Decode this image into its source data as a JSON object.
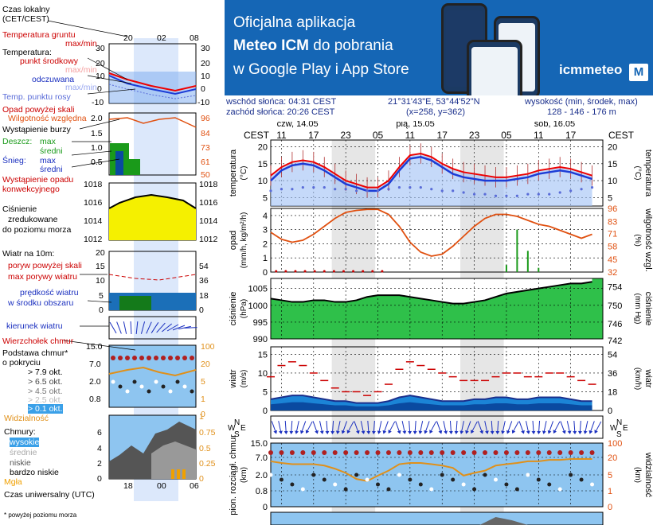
{
  "banner": {
    "line1": "Oficjalna aplikacja",
    "line2_bold": "Meteo ICM",
    "line2_rest": " do pobrania",
    "line3": "w Google Play i App Store",
    "logo": "icmmeteo",
    "logo_mark": "M"
  },
  "info": {
    "sunrise": "wschód słońca: 04:31 CEST",
    "sunset": "zachód słońca: 20:26 CEST",
    "coords": "21°31'43\"E, 53°44'52\"N",
    "grid": "(x=258, y=362)",
    "elev_label": "wysokość (min, środek, max)",
    "elev_values": "128 - 146 - 176 m"
  },
  "timeaxis": {
    "tz": "CEST",
    "days": [
      {
        "label": "czw, 14.05",
        "hour": 14
      },
      {
        "label": "pią, 15.05",
        "hour": 36
      },
      {
        "label": "sob, 16.05",
        "hour": 62
      }
    ],
    "hour_ticks": [
      {
        "label": "11",
        "h": 11
      },
      {
        "label": "17",
        "h": 17
      },
      {
        "label": "23",
        "h": 23
      },
      {
        "label": "05",
        "h": 29
      },
      {
        "label": "11",
        "h": 35
      },
      {
        "label": "17",
        "h": 41
      },
      {
        "label": "23",
        "h": 47
      },
      {
        "label": "05",
        "h": 53
      },
      {
        "label": "11",
        "h": 59
      },
      {
        "label": "17",
        "h": 65
      }
    ],
    "nights": [
      [
        20.4,
        28.5
      ],
      [
        44.4,
        52.5
      ]
    ]
  },
  "legend": {
    "time_local": "Czas lokalny",
    "time_local2": "(CET/CEST)",
    "hours_top": [
      "20",
      "02",
      "08"
    ],
    "soil_temp": "Temperatura gruntu",
    "maxmin": "max/min",
    "temperature": "Temperatura:",
    "mid_point": "punkt środkowy",
    "maxmin2": "max/min",
    "feels": "odczuwana",
    "maxmin3": "max/min",
    "dew": "Temp. punktu rosy",
    "temp_ticks": [
      "30",
      "20",
      "10",
      "0",
      "-10"
    ],
    "precip_above": "Opad powyżej skali",
    "humidity": "Wilgotność względna",
    "storm": "Wystąpienie burzy",
    "rain": "Deszcz:",
    "max": "max",
    "avg": "średni",
    "snow": "Śnieg:",
    "max2": "max",
    "avg2": "średni",
    "convective": "Wystąpienie opadu",
    "convective2": "konwekcyjnego",
    "rain_ticks": [
      "2.0",
      "1.5",
      "1.0",
      "0.5"
    ],
    "hum_ticks": [
      "96",
      "84",
      "73",
      "61",
      "50"
    ],
    "pressure": "Ciśnienie",
    "pressure2": "zredukowane",
    "pressure3": "do poziomu morza",
    "pres_ticks": [
      "1018",
      "1016",
      "1014",
      "1012"
    ],
    "wind_10m": "Wiatr na 10m:",
    "gust_above": "poryw powyżej skali",
    "max_gust": "max porywy wiatru",
    "wind_speed": "prędkość wiatru",
    "wind_speed2": "w środku obszaru",
    "wind_ticks": [
      "20",
      "15",
      "10",
      "5",
      "0"
    ],
    "wind_kmh_ticks": [
      "72",
      "54",
      "36",
      "18",
      "0"
    ],
    "wind_dir": "kierunek wiatru",
    "cloud_top": "Wierzchołek chmur",
    "cloud_base": "Podstawa chmur*",
    "cover": "o pokryciu",
    "okt79": "> 7.9 okt.",
    "okt65": "> 6.5 okt.",
    "okt45": "> 4.5 okt.",
    "okt25": "> 2.5 okt.",
    "okt01": "> 0.1 okt.",
    "cb_ticks": [
      "15.0",
      "7.0",
      "2.0",
      "0.8"
    ],
    "vis_ticks": [
      "100",
      "20",
      "5",
      "1",
      "0"
    ],
    "visibility": "Widzialność",
    "clouds": "Chmury:",
    "high": "wysokie",
    "mid": "średnie",
    "low": "niskie",
    "very_low": "bardzo niskie",
    "fog": "Mgła",
    "cl_ticks": [
      "6",
      "4",
      "2",
      "0"
    ],
    "cl_ticks_r": [
      "1",
      "0.75",
      "0.5",
      "0.25",
      "0"
    ],
    "hours_bottom": [
      "18",
      "00",
      "06"
    ],
    "utc": "Czas uniwersalny (UTC)",
    "footnote": "* powyżej poziomu morza"
  },
  "panels": {
    "temp": {
      "left": "temperatura",
      "left2": "(°C)",
      "right": "temperatura",
      "right2": "(°C)",
      "ticks": [
        "20",
        "15",
        "10",
        "5"
      ]
    },
    "precip": {
      "left": "opad",
      "left2": "(mm/h, kg/m²/h)",
      "right": "wilgotność wzgl.",
      "right2": "(%)",
      "ticks": [
        "4",
        "3",
        "2",
        "1",
        "0"
      ],
      "rticks": [
        "96",
        "83",
        "71",
        "58",
        "45",
        "32"
      ]
    },
    "pressure": {
      "left": "ciśnienie",
      "left2": "(hPa)",
      "right": "ciśnienie",
      "right2": "(mm Hg)",
      "ticks": [
        "1005",
        "1000",
        "995",
        "990"
      ],
      "rticks": [
        "754",
        "750",
        "746",
        "742"
      ]
    },
    "wind": {
      "left": "wiatr",
      "left2": "(m/s)",
      "right": "wiatr",
      "right2": "(km/h)",
      "ticks": [
        "15",
        "10",
        "5",
        "0"
      ],
      "rticks": [
        "54",
        "36",
        "18",
        "0"
      ]
    },
    "winddir": {
      "compass": "NWSE"
    },
    "clouds": {
      "left": "pion. rozciągł. chmur",
      "left2": "(km)",
      "right": "widzialność",
      "right2": "(km)",
      "ticks": [
        "15.0",
        "7.0",
        "2.0",
        "0.8",
        "0"
      ],
      "rticks": [
        "100",
        "20",
        "5",
        "1",
        "0"
      ]
    }
  },
  "chart_data": {
    "type": "line",
    "x_unit": "hour (CEST) from 00:00 14.05",
    "x": [
      9,
      11,
      13,
      15,
      17,
      19,
      21,
      23,
      25,
      27,
      29,
      31,
      33,
      35,
      37,
      39,
      41,
      43,
      45,
      47,
      49,
      51,
      53,
      55,
      57,
      59,
      61,
      63,
      65,
      67,
      69
    ],
    "series": [
      {
        "name": "temperatura",
        "values": [
          11.5,
          14,
          15.5,
          16,
          15.5,
          14,
          12,
          10,
          9,
          8,
          8,
          10,
          14,
          17.5,
          18,
          17,
          15,
          13.5,
          12.5,
          12,
          11.5,
          11,
          11,
          11.5,
          12,
          13,
          13.5,
          14,
          13.5,
          12.5,
          11.5
        ]
      },
      {
        "name": "temperatura odczuwana",
        "values": [
          10,
          13,
          14.5,
          15,
          14.5,
          13,
          11,
          9,
          8,
          7,
          7,
          9,
          13,
          16.5,
          17,
          16,
          14,
          12,
          11,
          10.5,
          10,
          10,
          10,
          10.5,
          11,
          12,
          12.5,
          13,
          12.5,
          11.5,
          10.5
        ]
      },
      {
        "name": "temperatura punktu rosy",
        "values": [
          7,
          7.5,
          7.5,
          8,
          8,
          8,
          7.5,
          7.5,
          7,
          7,
          7,
          7.5,
          8,
          8,
          8,
          7.5,
          7,
          7,
          6.5,
          6,
          6,
          5.5,
          5.5,
          5.5,
          6,
          6,
          6,
          6.5,
          7,
          7.5,
          8
        ]
      },
      {
        "name": "wilgotność względna",
        "values": [
          72,
          65,
          62,
          64,
          70,
          78,
          86,
          92,
          94,
          95,
          95,
          90,
          78,
          62,
          52,
          48,
          50,
          58,
          68,
          78,
          86,
          90,
          90,
          88,
          84,
          80,
          78,
          74,
          70,
          66,
          70
        ]
      },
      {
        "name": "opad",
        "values": [
          0,
          0,
          0,
          0,
          0,
          0,
          0,
          0,
          0,
          0,
          0,
          0,
          0,
          0,
          0,
          0,
          0,
          0,
          0,
          0,
          0,
          0,
          0.5,
          3,
          1.5,
          0.3,
          0,
          0,
          0,
          0,
          0
        ]
      },
      {
        "name": "ciśnienie",
        "values": [
          1002,
          1001.5,
          1001,
          1001,
          1001.5,
          1001.5,
          1001,
          1001,
          1001.5,
          1002.5,
          1003,
          1003,
          1003,
          1002.5,
          1002,
          1001.5,
          1001,
          1000.5,
          1000.5,
          1001,
          1001.5,
          1002.5,
          1003.5,
          1004,
          1004.5,
          1005,
          1005.5,
          1006,
          1006.5,
          1006.5,
          1007
        ]
      },
      {
        "name": "prędkość wiatru",
        "values": [
          3,
          3.5,
          4,
          4,
          3.5,
          3,
          2.5,
          2.5,
          2,
          2,
          2,
          2.5,
          3.5,
          4,
          3.5,
          3,
          2.5,
          2.5,
          2.5,
          3,
          3,
          3.5,
          3.5,
          3,
          3,
          3.5,
          3.5,
          3.5,
          3,
          2.5,
          2.5
        ]
      },
      {
        "name": "max porywy wiatru",
        "values": [
          9,
          12,
          13,
          12,
          10,
          8,
          6,
          5,
          5,
          4,
          5,
          7,
          11,
          13,
          12,
          11,
          10,
          9,
          8,
          8,
          8,
          9,
          10,
          10,
          9,
          9,
          10,
          10,
          9,
          8,
          7
        ]
      },
      {
        "name": "widzialność",
        "values": [
          25,
          22,
          20,
          20,
          20,
          18,
          14,
          10,
          6,
          5,
          8,
          12,
          20,
          22,
          22,
          20,
          18,
          15,
          8,
          10,
          12,
          18,
          20,
          22,
          25,
          25,
          28,
          28,
          30,
          30,
          30
        ]
      }
    ],
    "x_range": [
      9,
      71
    ],
    "y_ranges": {
      "temperatura": [
        2.5,
        22
      ],
      "opad": [
        0,
        4.5
      ],
      "wilgotność": [
        32,
        96
      ],
      "ciśnienie": [
        990,
        1008
      ],
      "wiatr": [
        0,
        17
      ]
    }
  }
}
